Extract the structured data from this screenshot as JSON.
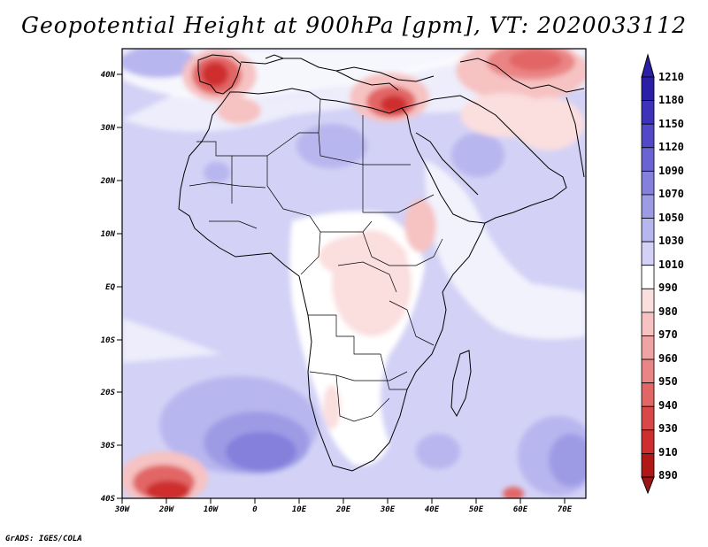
{
  "title": "Geopotential Height at 900hPa [gpm], VT: 2020033112",
  "credit": "GrADS: IGES/COLA",
  "map": {
    "lat_labels": [
      "40N",
      "30N",
      "20N",
      "10N",
      "EQ",
      "10S",
      "20S",
      "30S",
      "40S"
    ],
    "lon_labels": [
      "30W",
      "20W",
      "10W",
      "0",
      "10E",
      "20E",
      "30E",
      "40E",
      "50E",
      "60E",
      "70E"
    ]
  },
  "colorbar": {
    "labels": [
      "1210",
      "1180",
      "1150",
      "1120",
      "1090",
      "1070",
      "1050",
      "1030",
      "1010",
      "990",
      "980",
      "970",
      "960",
      "950",
      "940",
      "930",
      "910",
      "890"
    ],
    "colors": [
      "#2b1fa8",
      "#3d33bb",
      "#5248c8",
      "#6a63d2",
      "#8480dc",
      "#9e9be5",
      "#b8b6ee",
      "#d3d2f6",
      "#ffffff",
      "#fbdede",
      "#f6c2c2",
      "#f0a3a3",
      "#ea8585",
      "#e26666",
      "#d84848",
      "#ce2e2e",
      "#b01818"
    ],
    "top_arrow_color": "#2b1fa8",
    "bottom_arrow_color": "#9e1414"
  }
}
